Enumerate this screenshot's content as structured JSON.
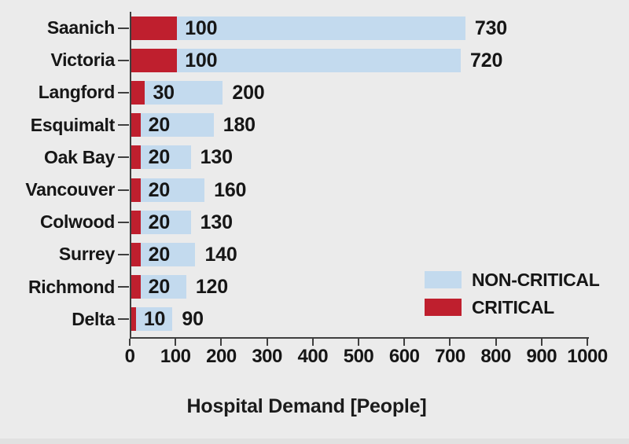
{
  "chart_data": {
    "type": "bar",
    "orientation": "horizontal",
    "bar_style": "overlapped",
    "title": "Hospital Demand [People]",
    "xlabel": "Hospital Demand [People]",
    "ylabel": "",
    "xlim": [
      0,
      1000
    ],
    "x_ticks": [
      0,
      100,
      200,
      300,
      400,
      500,
      600,
      700,
      800,
      900,
      1000
    ],
    "grid": false,
    "legend_position": "lower right",
    "categories": [
      "Saanich",
      "Victoria",
      "Langford",
      "Esquimalt",
      "Oak Bay",
      "Vancouver",
      "Colwood",
      "Surrey",
      "Richmond",
      "Delta"
    ],
    "series": [
      {
        "name": "NON-CRITICAL",
        "color": "#c3daee",
        "values": [
          730,
          720,
          200,
          180,
          130,
          160,
          130,
          140,
          120,
          90
        ]
      },
      {
        "name": "CRITICAL",
        "color": "#bf1f2e",
        "values": [
          100,
          100,
          30,
          20,
          20,
          20,
          20,
          20,
          20,
          10
        ]
      }
    ]
  },
  "colors": {
    "background": "#ebebeb",
    "axis": "#3f3f3f",
    "text": "#161616"
  }
}
